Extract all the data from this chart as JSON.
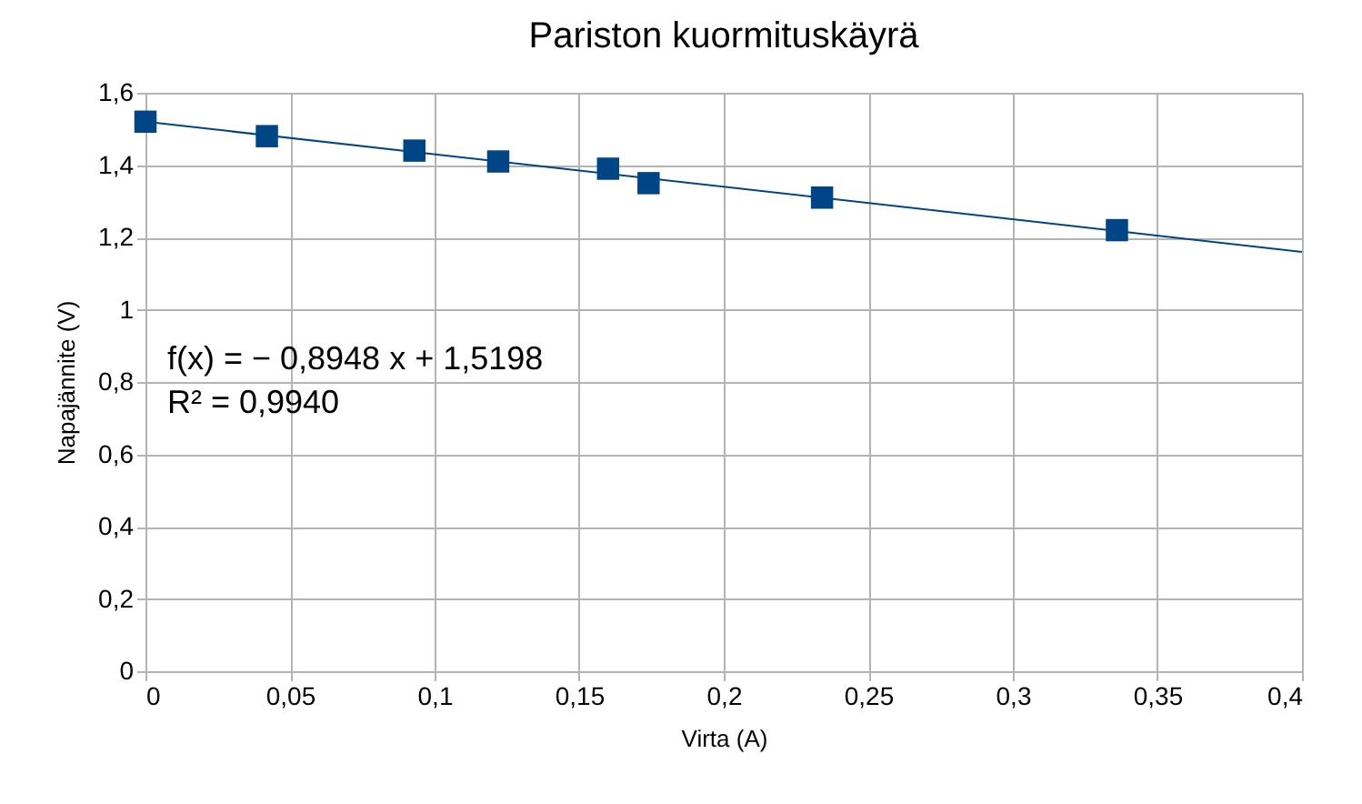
{
  "chart_data": {
    "type": "scatter",
    "title": "Pariston kuormituskäyrä",
    "xlabel": "Virta (A)",
    "ylabel": "Napajännite (V)",
    "xlim": [
      0,
      0.4
    ],
    "ylim": [
      0,
      1.6
    ],
    "xticks": [
      0,
      {
        "value": 0.05,
        "label": "0,05"
      },
      {
        "value": 0.1,
        "label": "0,1"
      },
      {
        "value": 0.15,
        "label": "0,15"
      },
      {
        "value": 0.2,
        "label": "0,2"
      },
      {
        "value": 0.25,
        "label": "0,25"
      },
      {
        "value": 0.3,
        "label": "0,3"
      },
      {
        "value": 0.35,
        "label": "0,35"
      },
      {
        "value": 0.4,
        "label": "0,4"
      }
    ],
    "yticks": [
      0,
      {
        "value": 0.2,
        "label": "0,2"
      },
      {
        "value": 0.4,
        "label": "0,4"
      },
      {
        "value": 0.6,
        "label": "0,6"
      },
      {
        "value": 0.8,
        "label": "0,8"
      },
      1,
      {
        "value": 1.2,
        "label": "1,2"
      },
      {
        "value": 1.4,
        "label": "1,4"
      },
      {
        "value": 1.6,
        "label": "1,6"
      }
    ],
    "grid": true,
    "series": [
      {
        "marker": "square",
        "color": "#004586",
        "x": [
          0,
          0.042,
          0.093,
          0.122,
          0.16,
          0.174,
          0.234,
          0.336
        ],
        "values": [
          1.52,
          1.48,
          1.44,
          1.41,
          1.39,
          1.35,
          1.31,
          1.22
        ]
      },
      {
        "type": "line",
        "line_style": "solid",
        "color": "#004586",
        "x": [
          0,
          0.4
        ],
        "values": [
          1.52,
          1.16
        ]
      }
    ],
    "annotations": [
      "f(x) = − 0,8948 x + 1,5198",
      "R² = 0,9940"
    ]
  }
}
